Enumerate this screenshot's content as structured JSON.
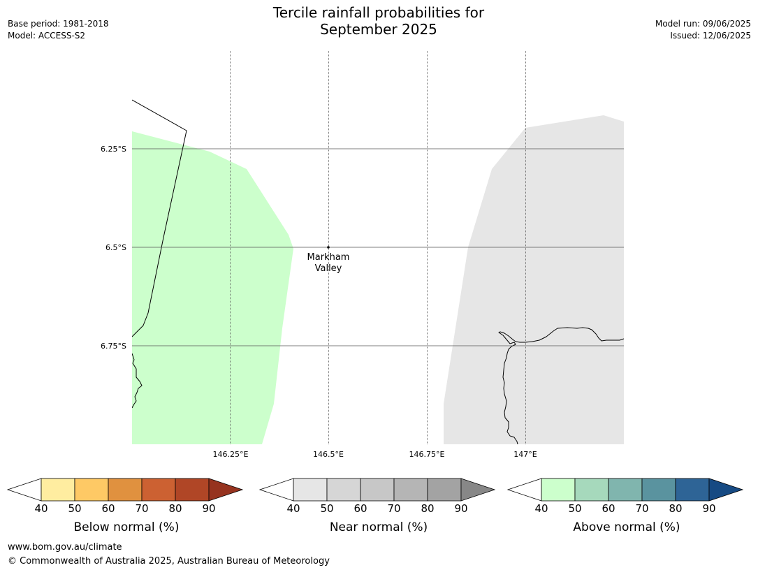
{
  "title": {
    "line1": "Tercile rainfall probabilities for",
    "line2": "September 2025"
  },
  "meta_left": {
    "base_period": "Base period: 1981-2018",
    "model": "Model: ACCESS-S2"
  },
  "meta_right": {
    "model_run": "Model run: 09/06/2025",
    "issued": "Issued: 12/06/2025"
  },
  "map": {
    "lat_labels": [
      "6.25°S",
      "6.5°S",
      "6.75°S"
    ],
    "lon_labels": [
      "146.25°E",
      "146.5°E",
      "146.75°E",
      "147°E"
    ],
    "place": {
      "name_line1": "Markham",
      "name_line2": "Valley"
    },
    "colors": {
      "above_normal_fill": "#ccffcc",
      "near_normal_fill": "#e6e6e6",
      "coastline": "#000000",
      "gridline": "#555555"
    }
  },
  "colorbars": [
    {
      "label": "Below normal (%)",
      "ticks": [
        "40",
        "50",
        "60",
        "70",
        "80",
        "90"
      ],
      "colors": [
        "#ffffff",
        "#ffeda0",
        "#fec965",
        "#e0913f",
        "#cc6132",
        "#b04626",
        "#96331f"
      ]
    },
    {
      "label": "Near normal (%)",
      "ticks": [
        "40",
        "50",
        "60",
        "70",
        "80",
        "90"
      ],
      "colors": [
        "#ffffff",
        "#e6e6e6",
        "#d6d6d6",
        "#c7c7c7",
        "#b5b5b5",
        "#a3a3a3",
        "#878787"
      ]
    },
    {
      "label": "Above normal (%)",
      "ticks": [
        "40",
        "50",
        "60",
        "70",
        "80",
        "90"
      ],
      "colors": [
        "#ffffff",
        "#ccffcc",
        "#a6d9bc",
        "#80b5ae",
        "#5a939f",
        "#2e6496",
        "#164a83"
      ]
    }
  ],
  "footer": {
    "website": "www.bom.gov.au/climate",
    "copyright": "© Commonwealth of Australia 2025, Australian Bureau of Meteorology"
  }
}
